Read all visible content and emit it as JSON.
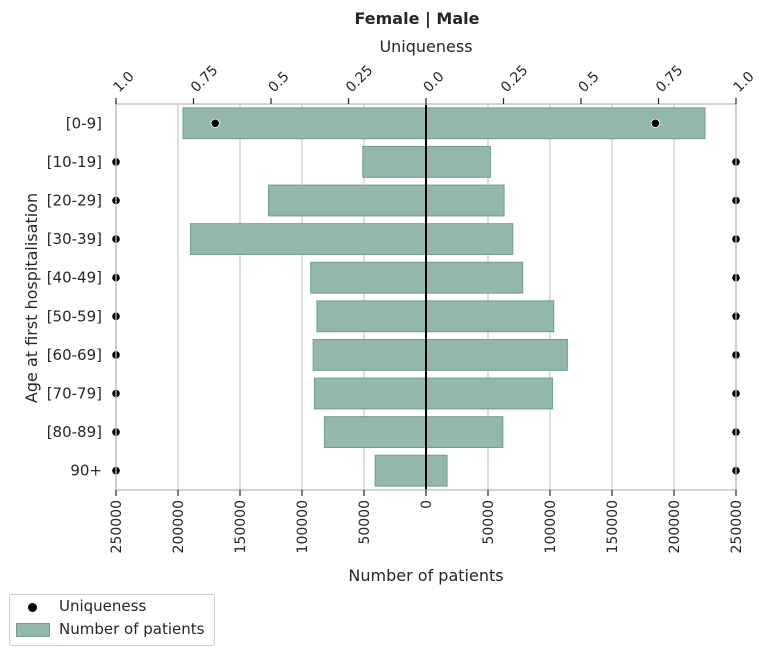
{
  "chart_data": {
    "type": "bar",
    "orientation": "horizontal-population-pyramid",
    "title": "Female | Male",
    "xlabel_bottom": "Number of patients",
    "xlabel_top": "Uniqueness",
    "ylabel": "Age at first hospitalisation",
    "categories": [
      "[0-9]",
      "[10-19]",
      "[20-29]",
      "[30-39]",
      "[40-49]",
      "[50-59]",
      "[60-69]",
      "[70-79]",
      "[80-89]",
      "90+"
    ],
    "bottom_ticks": [
      {
        "value": -250000,
        "label": "250000"
      },
      {
        "value": -200000,
        "label": "200000"
      },
      {
        "value": -150000,
        "label": "150000"
      },
      {
        "value": -100000,
        "label": "100000"
      },
      {
        "value": -50000,
        "label": "50000"
      },
      {
        "value": 0,
        "label": "0"
      },
      {
        "value": 50000,
        "label": "50000"
      },
      {
        "value": 100000,
        "label": "100000"
      },
      {
        "value": 150000,
        "label": "150000"
      },
      {
        "value": 200000,
        "label": "200000"
      },
      {
        "value": 250000,
        "label": "250000"
      }
    ],
    "top_ticks": [
      {
        "value": -1.0,
        "label": "1.0"
      },
      {
        "value": -0.75,
        "label": "0.75"
      },
      {
        "value": -0.5,
        "label": "0.5"
      },
      {
        "value": -0.25,
        "label": "0.25"
      },
      {
        "value": 0,
        "label": "0.0"
      },
      {
        "value": 0.25,
        "label": "0.25"
      },
      {
        "value": 0.5,
        "label": "0.5"
      },
      {
        "value": 0.75,
        "label": "0.75"
      },
      {
        "value": 1.0,
        "label": "1.0"
      }
    ],
    "xlim": [
      -250000,
      250000
    ],
    "ulim": [
      -1.0,
      1.0
    ],
    "series": [
      {
        "name": "Number of patients",
        "side": "female",
        "values": [
          196000,
          51000,
          127000,
          190000,
          93000,
          88000,
          91000,
          90000,
          82000,
          41000
        ]
      },
      {
        "name": "Number of patients",
        "side": "male",
        "values": [
          225000,
          52000,
          63000,
          70000,
          78000,
          103000,
          114000,
          102000,
          62000,
          17000
        ]
      },
      {
        "name": "Uniqueness",
        "side": "female",
        "values": [
          0.68,
          1.0,
          1.0,
          1.0,
          1.0,
          1.0,
          1.0,
          1.0,
          1.0,
          1.0
        ]
      },
      {
        "name": "Uniqueness",
        "side": "male",
        "values": [
          0.74,
          1.0,
          1.0,
          1.0,
          1.0,
          1.0,
          1.0,
          1.0,
          1.0,
          1.0
        ]
      }
    ],
    "grid": true,
    "colors": {
      "bar_fill": "#93b7a8",
      "bar_edge": "#6fa08b",
      "dot": "#000000",
      "grid": "#cccccc",
      "axis": "#bdbdbd",
      "center": "#000000"
    }
  },
  "legend": {
    "placement": "lower-left outside",
    "items": [
      {
        "label": "Uniqueness",
        "marker": "dot"
      },
      {
        "label": "Number of patients",
        "marker": "patch"
      }
    ]
  }
}
